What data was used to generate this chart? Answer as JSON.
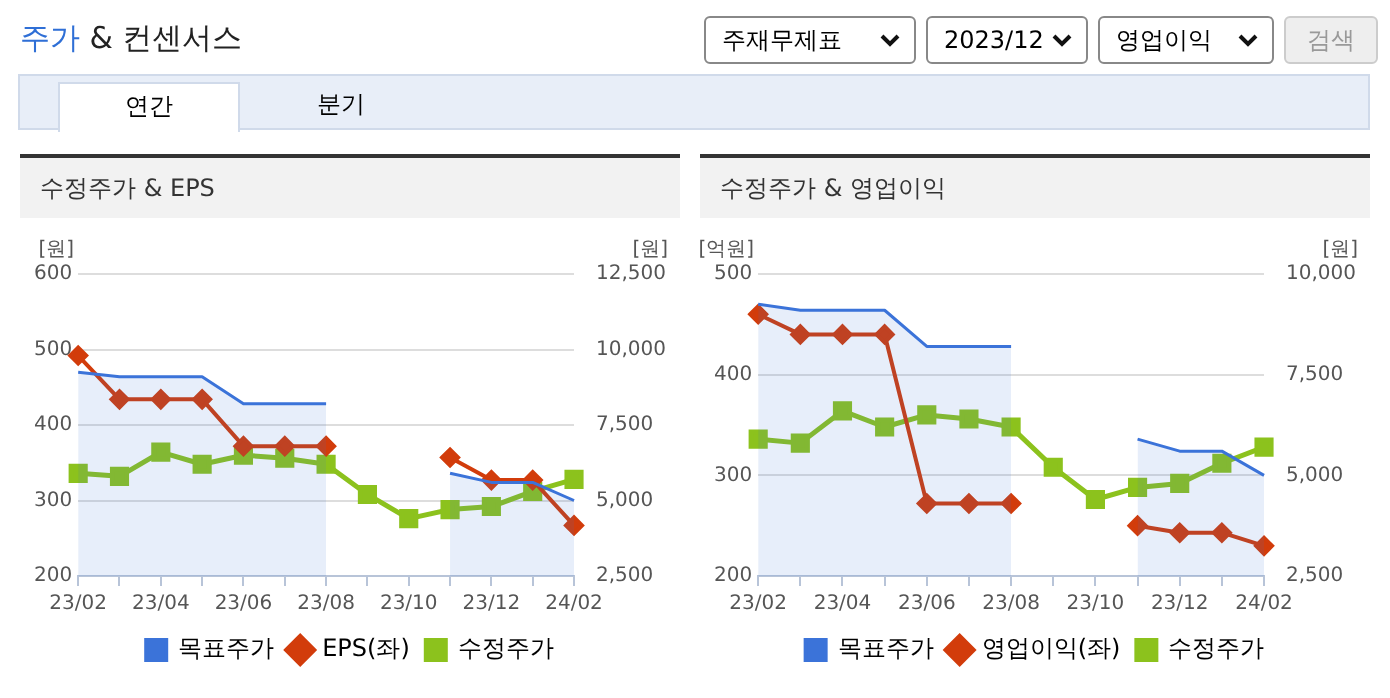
{
  "chart_data": [
    {
      "type": "other",
      "title": "주가 & 컨센서스",
      "annotations": [
        "주재무제표",
        "2023/12",
        "영업이익",
        "검색",
        "연간",
        "분기"
      ]
    },
    {
      "type": "line",
      "title": "수정주가 & EPS",
      "ylabel": "[원]",
      "y2label": "[원]",
      "categories": [
        "23/02",
        null,
        "23/04",
        null,
        "23/06",
        null,
        "23/08",
        null,
        "23/10",
        null,
        "23/12",
        null,
        "24/02"
      ],
      "ylim": [
        200,
        600
      ],
      "yticks": [
        200,
        300,
        400,
        500,
        600
      ],
      "y2lim": [
        2500,
        12500
      ],
      "y2ticks": [
        {
          "value": 2500,
          "label": "2,500"
        },
        {
          "value": 5000,
          "label": "5,000"
        },
        {
          "value": 7500,
          "label": "7,500"
        },
        {
          "value": 10000,
          "label": "10,000"
        },
        {
          "value": 12500,
          "label": "12,500"
        }
      ],
      "grid": "y",
      "legend": "bottom",
      "series": [
        {
          "name": "목표주가",
          "type": "area",
          "axis": "y2",
          "color": "#3b73d9",
          "marker": "none",
          "values": [
            9250,
            9100,
            9100,
            9100,
            8200,
            8200,
            8200,
            null,
            null,
            5900,
            5600,
            5600,
            5000
          ]
        },
        {
          "name": "EPS(좌)",
          "type": "line",
          "color": "#d23c0b",
          "marker": "diamond",
          "values": [
            492,
            434,
            434,
            434,
            372,
            372,
            372,
            null,
            null,
            357,
            327,
            327,
            267
          ]
        },
        {
          "name": "수정주가",
          "type": "line",
          "axis": "y2",
          "color": "#8cc21d",
          "marker": "square",
          "values": [
            5900,
            5800,
            6600,
            6200,
            6500,
            6400,
            6200,
            5200,
            4400,
            4700,
            4800,
            5300,
            5700
          ]
        }
      ]
    },
    {
      "type": "line",
      "title": "수정주가 & 영업이익",
      "ylabel": "[억원]",
      "y2label": "[원]",
      "categories": [
        "23/02",
        null,
        "23/04",
        null,
        "23/06",
        null,
        "23/08",
        null,
        "23/10",
        null,
        "23/12",
        null,
        "24/02"
      ],
      "ylim": [
        200,
        500
      ],
      "yticks": [
        200,
        300,
        400,
        500
      ],
      "y2lim": [
        2500,
        10000
      ],
      "y2ticks": [
        {
          "value": 2500,
          "label": "2,500"
        },
        {
          "value": 5000,
          "label": "5,000"
        },
        {
          "value": 7500,
          "label": "7,500"
        },
        {
          "value": 10000,
          "label": "10,000"
        }
      ],
      "grid": "y",
      "legend": "bottom",
      "series": [
        {
          "name": "목표주가",
          "type": "area",
          "axis": "y2",
          "color": "#3b73d9",
          "marker": "none",
          "values": [
            9250,
            9100,
            9100,
            9100,
            8200,
            8200,
            8200,
            null,
            null,
            5900,
            5600,
            5600,
            5000
          ]
        },
        {
          "name": "영업이익(좌)",
          "type": "line",
          "color": "#d23c0b",
          "marker": "diamond",
          "values": [
            460,
            440,
            440,
            440,
            272,
            272,
            272,
            null,
            null,
            250,
            243,
            243,
            230
          ]
        },
        {
          "name": "수정주가",
          "type": "line",
          "axis": "y2",
          "color": "#8cc21d",
          "marker": "square",
          "values": [
            5900,
            5800,
            6600,
            6200,
            6500,
            6400,
            6200,
            5200,
            4400,
            4700,
            4800,
            5300,
            5700
          ]
        }
      ]
    }
  ]
}
